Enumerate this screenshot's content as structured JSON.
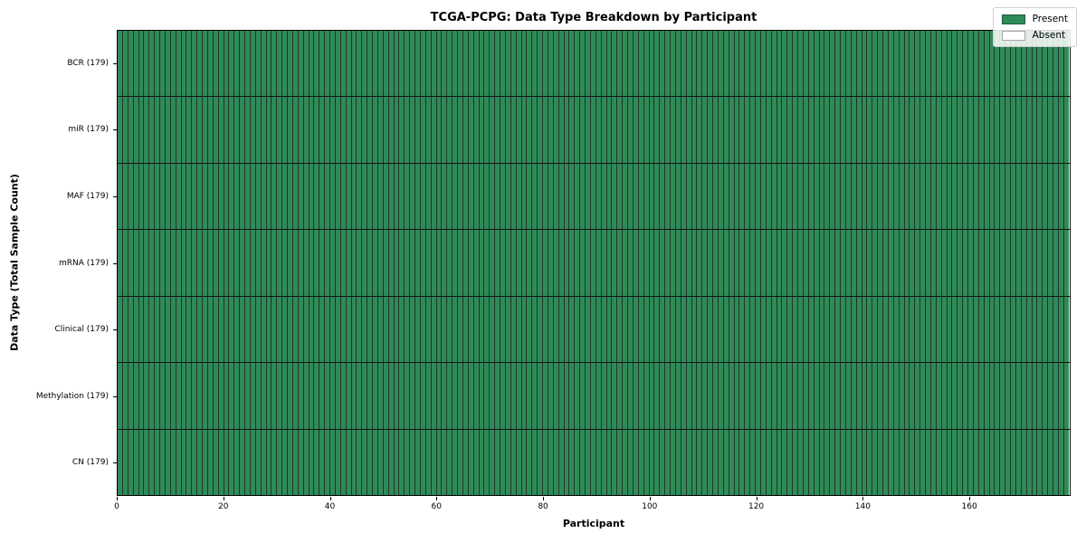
{
  "title": "TCGA-PCPG: Data Type Breakdown by Participant",
  "colors": {
    "present": "#2e8b57",
    "absent": "#ffffff",
    "cell_edge": "#22352a",
    "row_divider": "#131313",
    "axes_edge": "#000000",
    "legend_border": "#cccccc"
  },
  "chart_data": {
    "type": "heatmap",
    "title": "TCGA-PCPG: Data Type Breakdown by Participant",
    "xlabel": "Participant",
    "ylabel": "Data Type (Total Sample Count)",
    "xlim": [
      0,
      179
    ],
    "n_participants": 179,
    "x_ticks": [
      0,
      20,
      40,
      60,
      80,
      100,
      120,
      140,
      160
    ],
    "grid": false,
    "legend_position": "upper right",
    "value_states": [
      "Present",
      "Absent"
    ],
    "rows": [
      {
        "key": "BCR",
        "label": "BCR (179)",
        "total": 179,
        "present": 179,
        "absent": 0
      },
      {
        "key": "miR",
        "label": "miR (179)",
        "total": 179,
        "present": 179,
        "absent": 0
      },
      {
        "key": "MAF",
        "label": "MAF (179)",
        "total": 179,
        "present": 179,
        "absent": 0
      },
      {
        "key": "mRNA",
        "label": "mRNA (179)",
        "total": 179,
        "present": 179,
        "absent": 0
      },
      {
        "key": "Clinical",
        "label": "Clinical (179)",
        "total": 179,
        "present": 179,
        "absent": 0
      },
      {
        "key": "Methylation",
        "label": "Methylation (179)",
        "total": 179,
        "present": 179,
        "absent": 0
      },
      {
        "key": "CN",
        "label": "CN (179)",
        "total": 179,
        "present": 179,
        "absent": 0
      }
    ],
    "legend": {
      "entries": [
        {
          "label": "Present",
          "color": "#2e8b57"
        },
        {
          "label": "Absent",
          "color": "#ffffff"
        }
      ]
    }
  }
}
